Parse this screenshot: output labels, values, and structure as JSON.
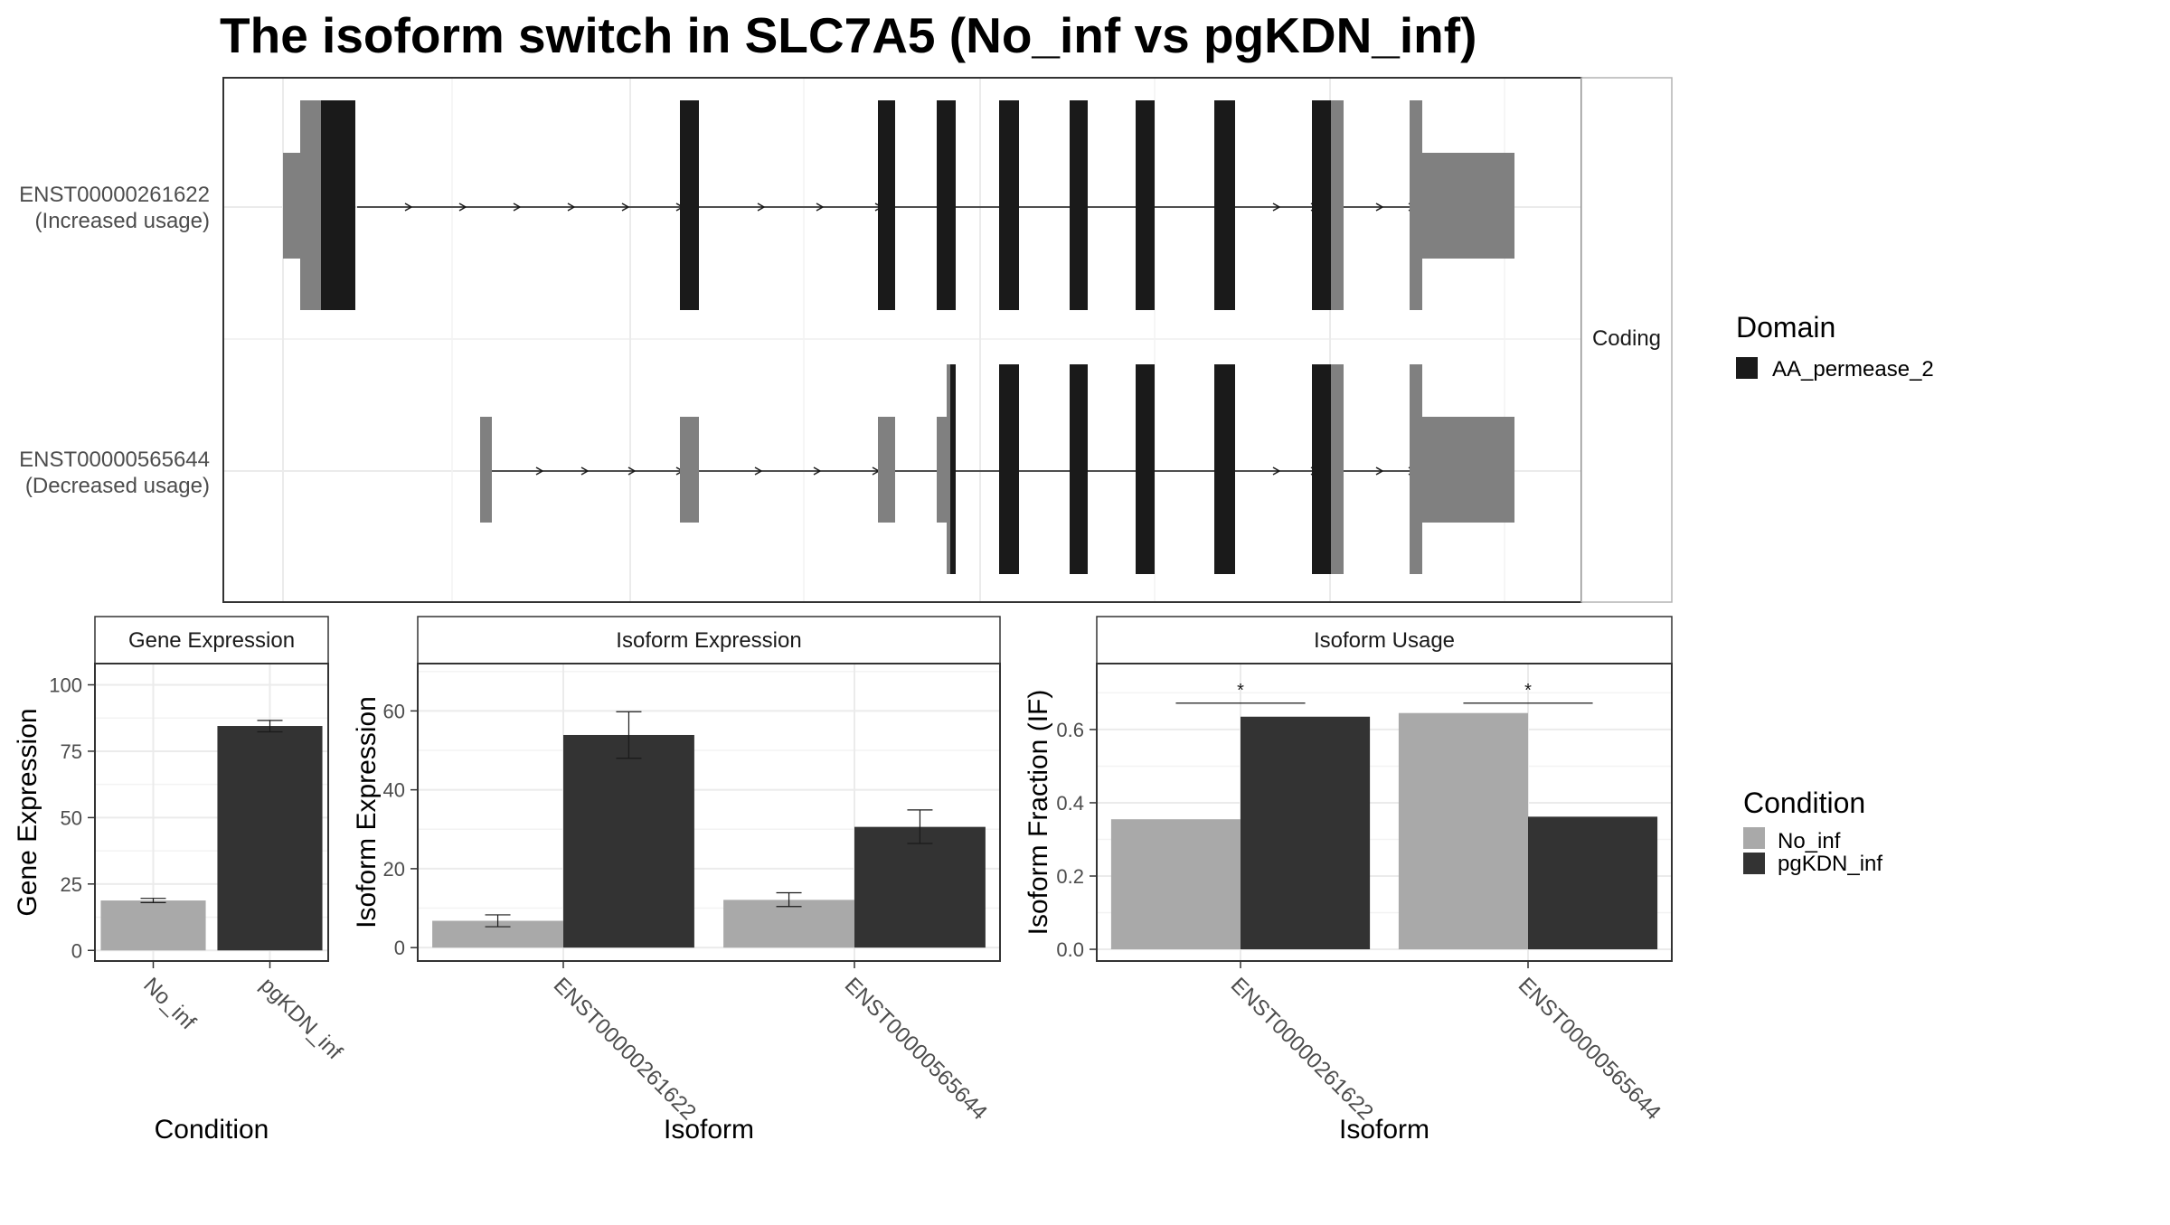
{
  "title": "The isoform switch in SLC7A5 (No_inf vs pgKDN_inf)",
  "colors": {
    "domain": "#1a1a1a",
    "utr": "#808080",
    "no_inf": "#a9a9a9",
    "pgkdn_inf": "#333333",
    "grid": "#ebebeb",
    "panel_border": "#333333",
    "strip_border": "#b3b3b3",
    "text": "#4d4d4d"
  },
  "structure": {
    "facet_label": "Coding",
    "isoforms": [
      {
        "id": "ENST00000261622",
        "label": "(Increased usage)"
      },
      {
        "id": "ENST00000565644",
        "label": "(Decreased usage)"
      }
    ],
    "legend": {
      "title": "Domain",
      "items": [
        {
          "label": "AA_permease_2",
          "color": "#1a1a1a"
        }
      ]
    }
  },
  "condition_legend": {
    "title": "Condition",
    "items": [
      {
        "label": "No_inf",
        "color": "#a9a9a9"
      },
      {
        "label": "pgKDN_inf",
        "color": "#333333"
      }
    ]
  },
  "chart_data": [
    {
      "type": "bar",
      "strip": "Gene Expression",
      "xlabel": "Condition",
      "ylabel": "Gene Expression",
      "categories": [
        "No_inf",
        "pgKDN_inf"
      ],
      "values": [
        18.8,
        84.5
      ],
      "error": [
        [
          18.0,
          19.6
        ],
        [
          82.3,
          86.6
        ]
      ],
      "ylim": [
        -4,
        108
      ],
      "yticks": [
        0,
        25,
        50,
        75,
        100
      ]
    },
    {
      "type": "bar",
      "strip": "Isoform Expression",
      "xlabel": "Isoform",
      "ylabel": "Isoform Expression",
      "categories": [
        "ENST00000261622",
        "ENST00000565644"
      ],
      "series": [
        {
          "name": "No_inf",
          "values": [
            6.8,
            12.1
          ],
          "error": [
            [
              5.3,
              8.3
            ],
            [
              10.4,
              13.9
            ]
          ]
        },
        {
          "name": "pgKDN_inf",
          "values": [
            53.9,
            30.6
          ],
          "error": [
            [
              48.0,
              59.8
            ],
            [
              26.4,
              34.9
            ]
          ]
        }
      ],
      "ylim": [
        -3.4,
        72
      ],
      "yticks": [
        0,
        20,
        40,
        60
      ]
    },
    {
      "type": "bar",
      "strip": "Isoform Usage",
      "xlabel": "Isoform",
      "ylabel": "Isoform Fraction (IF)",
      "categories": [
        "ENST00000261622",
        "ENST00000565644"
      ],
      "series": [
        {
          "name": "No_inf",
          "values": [
            0.355,
            0.645
          ]
        },
        {
          "name": "pgKDN_inf",
          "values": [
            0.635,
            0.362
          ]
        }
      ],
      "significance": [
        "*",
        "*"
      ],
      "sig_level": 0.672,
      "ylim": [
        -0.032,
        0.78
      ],
      "yticks": [
        0.0,
        0.2,
        0.4,
        0.6
      ],
      "ytick_labels": [
        "0.0",
        "0.2",
        "0.4",
        "0.6"
      ]
    }
  ]
}
